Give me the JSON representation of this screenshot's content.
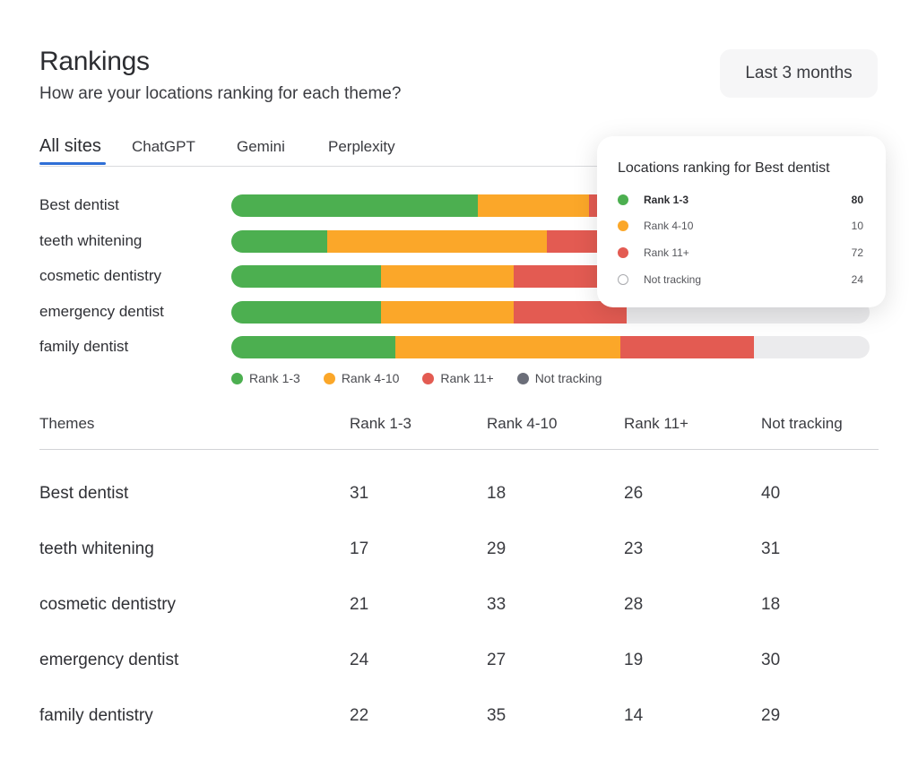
{
  "header": {
    "title": "Rankings",
    "subtitle": "How are your locations ranking for each theme?",
    "period_button": "Last 3 months"
  },
  "tabs": [
    {
      "label": "All sites",
      "active": true
    },
    {
      "label": "ChatGPT",
      "active": false
    },
    {
      "label": "Gemini",
      "active": false
    },
    {
      "label": "Perplexity",
      "active": false
    }
  ],
  "colors": {
    "rank_1_3": "#4caf50",
    "rank_4_10": "#fba729",
    "rank_11_plus": "#e35b52",
    "not_tracking": "#6b6e79",
    "track": "#ebebed",
    "accent": "#2f6fd6"
  },
  "chart_data": {
    "type": "bar",
    "orientation": "horizontal",
    "stacked": true,
    "categories": [
      "Best dentist",
      "teeth whitening",
      "cosmetic dentistry",
      "emergency dentist",
      "family dentist"
    ],
    "series": [
      {
        "name": "Rank 1-3",
        "values": [
          38.6,
          15.0,
          23.4,
          23.4,
          25.7
        ]
      },
      {
        "name": "Rank 4-10",
        "values": [
          17.5,
          34.4,
          20.9,
          20.9,
          35.3
        ]
      },
      {
        "name": "Rank 11+",
        "values": [
          22.7,
          21.5,
          20.7,
          17.6,
          20.9
        ]
      }
    ],
    "unit": "% of locations",
    "xlim": [
      0,
      100
    ],
    "legend": [
      {
        "label": "Rank 1-3",
        "color": "#4caf50"
      },
      {
        "label": "Rank 4-10",
        "color": "#fba729"
      },
      {
        "label": "Rank 11+",
        "color": "#e35b52"
      },
      {
        "label": "Not tracking",
        "color": "#6b6e79"
      }
    ],
    "legend_position": "bottom-left"
  },
  "tooltip": {
    "title": "Locations ranking for Best dentist",
    "rows": [
      {
        "label": "Rank 1-3",
        "value": "80",
        "color": "#4caf50",
        "bold": true
      },
      {
        "label": "Rank 4-10",
        "value": "10",
        "color": "#fba729",
        "bold": false
      },
      {
        "label": "Rank 11+",
        "value": "72",
        "color": "#e35b52",
        "bold": false
      },
      {
        "label": "Not tracking",
        "value": "24",
        "color": "outline",
        "bold": false
      }
    ]
  },
  "table": {
    "headers": [
      "Themes",
      "Rank 1-3",
      "Rank 4-10",
      "Rank 11+",
      "Not tracking"
    ],
    "rows": [
      {
        "theme": "Best dentist",
        "rank_1_3": "31",
        "rank_4_10": "18",
        "rank_11_plus": "26",
        "not_tracking": "40"
      },
      {
        "theme": "teeth whitening",
        "rank_1_3": "17",
        "rank_4_10": "29",
        "rank_11_plus": "23",
        "not_tracking": "31"
      },
      {
        "theme": "cosmetic dentistry",
        "rank_1_3": "21",
        "rank_4_10": "33",
        "rank_11_plus": "28",
        "not_tracking": "18"
      },
      {
        "theme": "emergency dentist",
        "rank_1_3": "24",
        "rank_4_10": "27",
        "rank_11_plus": "19",
        "not_tracking": "30"
      },
      {
        "theme": "family dentistry",
        "rank_1_3": "22",
        "rank_4_10": "35",
        "rank_11_plus": "14",
        "not_tracking": "29"
      }
    ]
  }
}
